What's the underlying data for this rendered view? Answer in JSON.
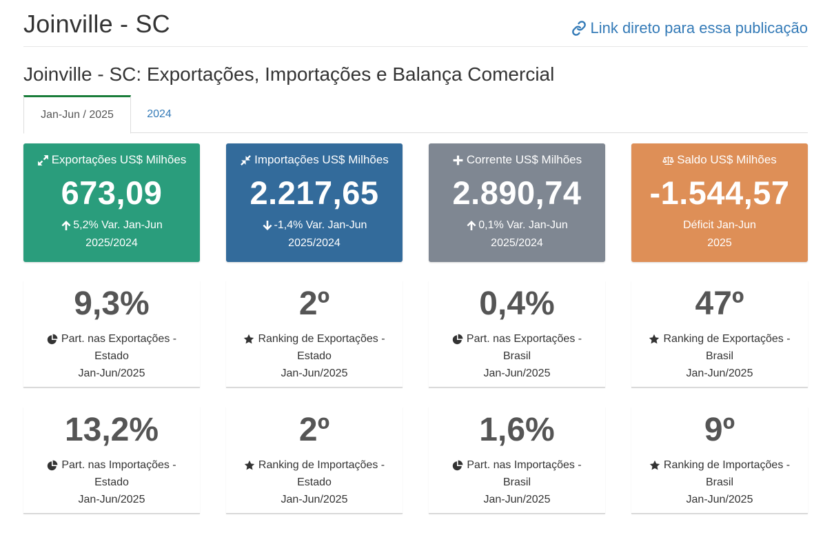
{
  "header": {
    "title": "Joinville - SC",
    "link_label": "Link direto para essa publicação",
    "link_icon": "link-icon"
  },
  "section_title": "Joinville - SC: Exportações, Importações e Balança Comercial",
  "tabs": [
    {
      "label": "Jan-Jun / 2025",
      "active": true
    },
    {
      "label": "2024",
      "active": false
    }
  ],
  "boxes": [
    {
      "icon": "expand-arrows-icon",
      "label": "Exportações US$ Milhões",
      "value": "673,09",
      "trend_icon": "arrow-up-icon",
      "sub1": "5,2% Var. Jan-Jun",
      "sub2": "2025/2024",
      "color": "#2a9d7c"
    },
    {
      "icon": "compress-arrows-icon",
      "label": "Importações US$ Milhões",
      "value": "2.217,65",
      "trend_icon": "arrow-down-icon",
      "sub1": "-1,4% Var. Jan-Jun",
      "sub2": "2025/2024",
      "color": "#336b9b"
    },
    {
      "icon": "plus-icon",
      "label": "Corrente US$ Milhões",
      "value": "2.890,74",
      "trend_icon": "arrow-up-icon",
      "sub1": "0,1% Var. Jan-Jun",
      "sub2": "2025/2024",
      "color": "#7f8792"
    },
    {
      "icon": "balance-scale-icon",
      "label": "Saldo US$ Milhões",
      "value": "-1.544,57",
      "trend_icon": "",
      "sub1": "Déficit Jan-Jun",
      "sub2": "2025",
      "color": "#de8f57"
    }
  ],
  "stats_row1": [
    {
      "value": "9,3%",
      "icon": "pie-chart-icon",
      "l1": "Part. nas Exportações -",
      "l2": "Estado",
      "l3": "Jan-Jun/2025"
    },
    {
      "value": "2º",
      "icon": "star-icon",
      "l1": "Ranking de Exportações -",
      "l2": "Estado",
      "l3": "Jan-Jun/2025"
    },
    {
      "value": "0,4%",
      "icon": "pie-chart-icon",
      "l1": "Part. nas Exportações -",
      "l2": "Brasil",
      "l3": "Jan-Jun/2025"
    },
    {
      "value": "47º",
      "icon": "star-icon",
      "l1": "Ranking de Exportações -",
      "l2": "Brasil",
      "l3": "Jan-Jun/2025"
    }
  ],
  "stats_row2": [
    {
      "value": "13,2%",
      "icon": "pie-chart-icon",
      "l1": "Part. nas Importações -",
      "l2": "Estado",
      "l3": "Jan-Jun/2025"
    },
    {
      "value": "2º",
      "icon": "star-icon",
      "l1": "Ranking de Importações -",
      "l2": "Estado",
      "l3": "Jan-Jun/2025"
    },
    {
      "value": "1,6%",
      "icon": "pie-chart-icon",
      "l1": "Part. nas Importações -",
      "l2": "Brasil",
      "l3": "Jan-Jun/2025"
    },
    {
      "value": "9º",
      "icon": "star-icon",
      "l1": "Ranking de Importações -",
      "l2": "Brasil",
      "l3": "Jan-Jun/2025"
    }
  ]
}
